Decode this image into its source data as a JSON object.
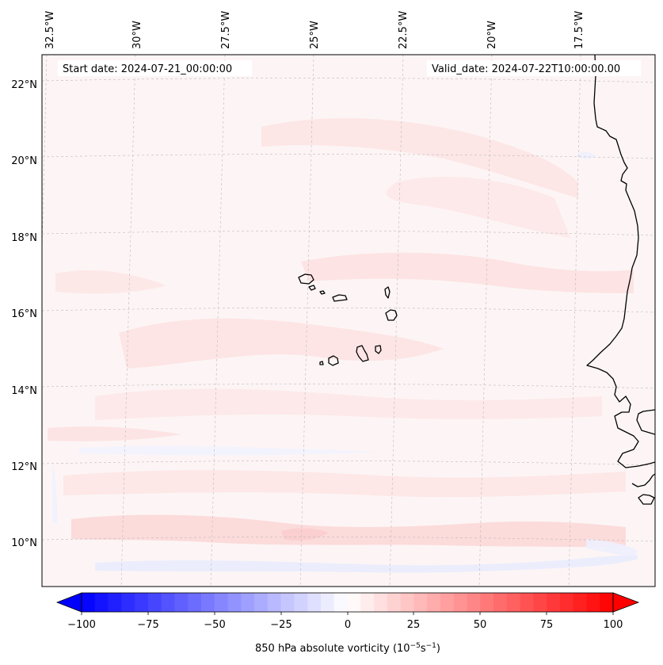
{
  "header": {
    "start_date": "Start date: 2024-07-21_00:00:00",
    "valid_date": "Valid_date: 2024-07-22T10:00:00.00"
  },
  "lon_labels": [
    "32.5°W",
    "30°W",
    "27.5°W",
    "25°W",
    "22.5°W",
    "20°W",
    "17.5°W"
  ],
  "lat_labels": [
    "22°N",
    "20°N",
    "18°N",
    "16°N",
    "14°N",
    "12°N",
    "10°N"
  ],
  "colorbar": {
    "ticks": [
      "−100",
      "−75",
      "−50",
      "−25",
      "0",
      "25",
      "50",
      "75",
      "100"
    ],
    "label": "850 hPa absolute vorticity (10",
    "label_exp1": "−5",
    "label_mid": "s",
    "label_exp2": "−1",
    "label_end": ")",
    "vmin": -100,
    "vmax": 100,
    "levels": 40,
    "colormap": "bwr",
    "color_min": "#0000ff",
    "color_mid": "#ffffff",
    "color_max": "#ff0000"
  },
  "map": {
    "field": "850 hPa absolute vorticity",
    "coastline_color": "#000000",
    "gridline_color": "#bbbbbb",
    "gridlines": true
  }
}
